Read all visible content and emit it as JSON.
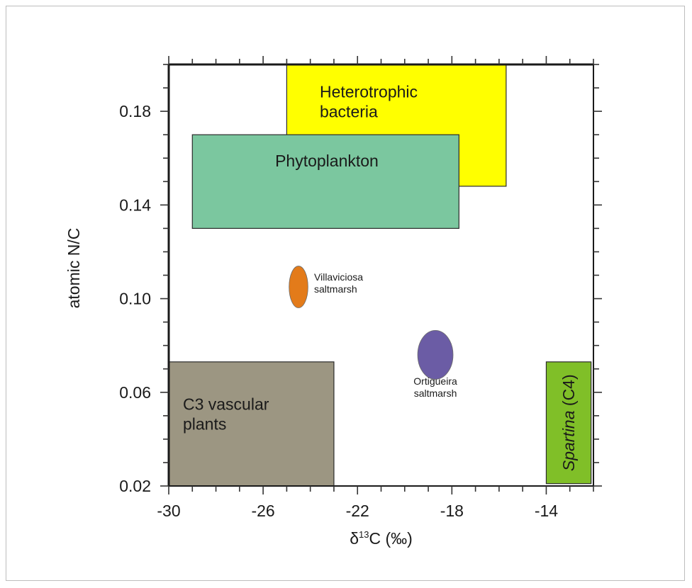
{
  "chart_data": {
    "type": "scatter",
    "xlabel": "δ¹³C (‰)",
    "ylabel": "atomic N/C",
    "xlim": [
      -30,
      -12
    ],
    "ylim": [
      0.02,
      0.2
    ],
    "xticks": [
      -30,
      -26,
      -22,
      -18,
      -14
    ],
    "xtick_labels": [
      "-30",
      "-26",
      "-22",
      "-18",
      "-14"
    ],
    "yticks": [
      0.02,
      0.06,
      0.1,
      0.14,
      0.18
    ],
    "ytick_labels": [
      "0.02",
      "0.06",
      "0.10",
      "0.14",
      "0.18"
    ],
    "regions": [
      {
        "label": "Heterotrophic bacteria",
        "lines": [
          "Heterotrophic",
          "bacteria"
        ],
        "x": [
          -25.0,
          -15.7
        ],
        "y": [
          0.148,
          0.2
        ],
        "color": "#ffff00"
      },
      {
        "label": "Phytoplankton",
        "lines": [
          "Phytoplankton"
        ],
        "x": [
          -29.0,
          -17.7
        ],
        "y": [
          0.13,
          0.17
        ],
        "color": "#7bc79f"
      },
      {
        "label": "C3 vascular plants",
        "lines": [
          "C3 vascular",
          "plants"
        ],
        "x": [
          -30.0,
          -23.0
        ],
        "y": [
          0.02,
          0.073
        ],
        "color": "#9c9682"
      },
      {
        "label": "Spartina (C4)",
        "italic": "Spartina",
        "rest": " (C4)",
        "x": [
          -14.0,
          -12.1
        ],
        "y": [
          0.021,
          0.073
        ],
        "color": "#80bf28",
        "vertical": true
      }
    ],
    "points": [
      {
        "lines": [
          "Villaviciosa",
          "saltmarsh"
        ],
        "x": -24.5,
        "y": 0.105,
        "rx": 0.4,
        "ry": 0.0065,
        "color": "#e37b1a"
      },
      {
        "lines": [
          "Ortigueira",
          "saltmarsh"
        ],
        "x": -18.7,
        "y": 0.076,
        "rx": 0.75,
        "ry": 0.0065,
        "color": "#6b5ca5"
      }
    ]
  }
}
